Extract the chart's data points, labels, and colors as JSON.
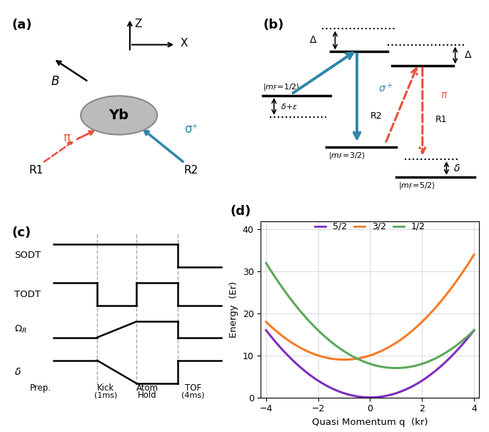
{
  "panel_labels": [
    "(a)",
    "(b)",
    "(c)",
    "(d)"
  ],
  "panel_label_fontsize": 13,
  "colors": {
    "red": "#E8503A",
    "blue": "#2E86AB",
    "purple": "#7B2FBE",
    "orange": "#F47C26",
    "green": "#5BA85A",
    "gray_ellipse": "#BBBBBB",
    "black": "#000000",
    "dashed_gray": "#AAAAAA"
  },
  "energy_curves": {
    "q": [
      -4,
      4
    ],
    "spin_labels": [
      "5/2",
      "3/2",
      "1/2"
    ],
    "spin_colors": [
      "#7B2FBE",
      "#F47C26",
      "#5BA85A"
    ],
    "offsets": [
      0,
      9,
      7
    ],
    "shifts": [
      0,
      -1,
      1
    ],
    "ylabel": "Energy  (Er)",
    "xlabel": "Quasi Momentum q  (kr)",
    "ylim": [
      0,
      42
    ],
    "xlim": [
      -4.2,
      4.2
    ],
    "yticks": [
      0,
      10,
      20,
      30,
      40
    ],
    "xticks": [
      -4,
      -2,
      0,
      2,
      4
    ]
  }
}
